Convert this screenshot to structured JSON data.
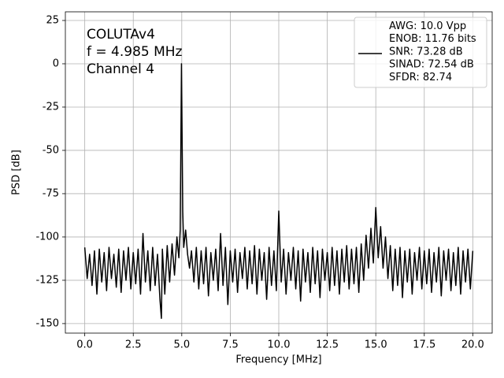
{
  "chart_data": {
    "type": "line",
    "xlabel": "Frequency [MHz]",
    "ylabel": "PSD [dB]",
    "annotations": [
      "COLUTAv4",
      "f = 4.985 MHz",
      "Channel 4"
    ],
    "xlim": [
      -1,
      21
    ],
    "ylim": [
      -155.5,
      30
    ],
    "xticks": [
      {
        "value": 0,
        "label": "0.0"
      },
      {
        "value": 2.5,
        "label": "2.5"
      },
      {
        "value": 5,
        "label": "5.0"
      },
      {
        "value": 7.5,
        "label": "7.5"
      },
      {
        "value": 10,
        "label": "10.0"
      },
      {
        "value": 12.5,
        "label": "12.5"
      },
      {
        "value": 15,
        "label": "15.0"
      },
      {
        "value": 17.5,
        "label": "17.5"
      },
      {
        "value": 20,
        "label": "20.0"
      }
    ],
    "yticks": [
      25,
      0,
      -25,
      -50,
      -75,
      -100,
      -125,
      -150
    ],
    "grid": true,
    "legend": "upper right",
    "x": [
      0,
      0.125,
      0.25,
      0.375,
      0.5,
      0.625,
      0.75,
      0.875,
      1,
      1.125,
      1.25,
      1.375,
      1.5,
      1.625,
      1.75,
      1.875,
      2,
      2.125,
      2.25,
      2.375,
      2.5,
      2.625,
      2.75,
      2.875,
      3,
      3.125,
      3.25,
      3.375,
      3.5,
      3.625,
      3.75,
      3.875,
      3.95,
      4,
      4.125,
      4.25,
      4.375,
      4.5,
      4.625,
      4.75,
      4.85,
      4.92,
      4.985,
      5.05,
      5.1,
      5.2,
      5.3,
      5.4,
      5.5,
      5.625,
      5.75,
      5.875,
      6,
      6.125,
      6.25,
      6.375,
      6.5,
      6.625,
      6.75,
      6.875,
      7,
      7.125,
      7.25,
      7.375,
      7.5,
      7.625,
      7.75,
      7.875,
      8,
      8.125,
      8.25,
      8.375,
      8.5,
      8.625,
      8.75,
      8.875,
      9,
      9.125,
      9.25,
      9.375,
      9.5,
      9.625,
      9.75,
      9.875,
      10,
      10.125,
      10.25,
      10.375,
      10.5,
      10.625,
      10.75,
      10.875,
      11,
      11.125,
      11.25,
      11.375,
      11.5,
      11.625,
      11.75,
      11.875,
      12,
      12.125,
      12.25,
      12.375,
      12.5,
      12.625,
      12.75,
      12.875,
      13,
      13.125,
      13.25,
      13.375,
      13.5,
      13.625,
      13.75,
      13.875,
      14,
      14.125,
      14.25,
      14.375,
      14.5,
      14.625,
      14.75,
      14.875,
      15,
      15.125,
      15.25,
      15.375,
      15.5,
      15.625,
      15.75,
      15.875,
      16,
      16.125,
      16.25,
      16.375,
      16.5,
      16.625,
      16.75,
      16.875,
      17,
      17.125,
      17.25,
      17.375,
      17.5,
      17.625,
      17.75,
      17.875,
      18,
      18.125,
      18.25,
      18.375,
      18.5,
      18.625,
      18.75,
      18.875,
      19,
      19.125,
      19.25,
      19.375,
      19.5,
      19.625,
      19.75,
      19.875,
      20
    ],
    "series": [
      {
        "name": "AWG: 10.0 Vpp\nENOB: 11.76 bits\nSNR: 73.28 dB\nSINAD: 72.54 dB\nSFDR: 82.74",
        "color": "#000000",
        "values": [
          -106,
          -124,
          -110,
          -128,
          -108,
          -133,
          -107,
          -126,
          -109,
          -131,
          -106,
          -124,
          -110,
          -129,
          -107,
          -132,
          -108,
          -125,
          -106,
          -130,
          -109,
          -127,
          -107,
          -133,
          -98,
          -126,
          -108,
          -131,
          -106,
          -128,
          -110,
          -136,
          -147,
          -107,
          -133,
          -105,
          -126,
          -104,
          -122,
          -100,
          -112,
          -96,
          0,
          -85,
          -106,
          -96,
          -110,
          -118,
          -108,
          -126,
          -106,
          -130,
          -108,
          -127,
          -106,
          -134,
          -109,
          -125,
          -107,
          -131,
          -98,
          -128,
          -106,
          -139,
          -108,
          -126,
          -107,
          -132,
          -109,
          -124,
          -106,
          -130,
          -108,
          -127,
          -105,
          -133,
          -107,
          -125,
          -109,
          -136,
          -106,
          -128,
          -108,
          -131,
          -85,
          -126,
          -107,
          -133,
          -109,
          -125,
          -106,
          -130,
          -108,
          -137,
          -107,
          -126,
          -109,
          -132,
          -106,
          -127,
          -108,
          -135,
          -107,
          -125,
          -109,
          -131,
          -106,
          -128,
          -108,
          -133,
          -107,
          -126,
          -105,
          -130,
          -107,
          -127,
          -106,
          -132,
          -104,
          -125,
          -99,
          -118,
          -95,
          -115,
          -83,
          -112,
          -94,
          -118,
          -100,
          -124,
          -105,
          -131,
          -107,
          -128,
          -106,
          -135,
          -108,
          -126,
          -107,
          -133,
          -109,
          -125,
          -106,
          -130,
          -108,
          -127,
          -107,
          -132,
          -109,
          -126,
          -106,
          -134,
          -108,
          -125,
          -107,
          -131,
          -109,
          -128,
          -106,
          -133,
          -108,
          -126,
          -107,
          -130,
          -108
        ]
      }
    ]
  }
}
